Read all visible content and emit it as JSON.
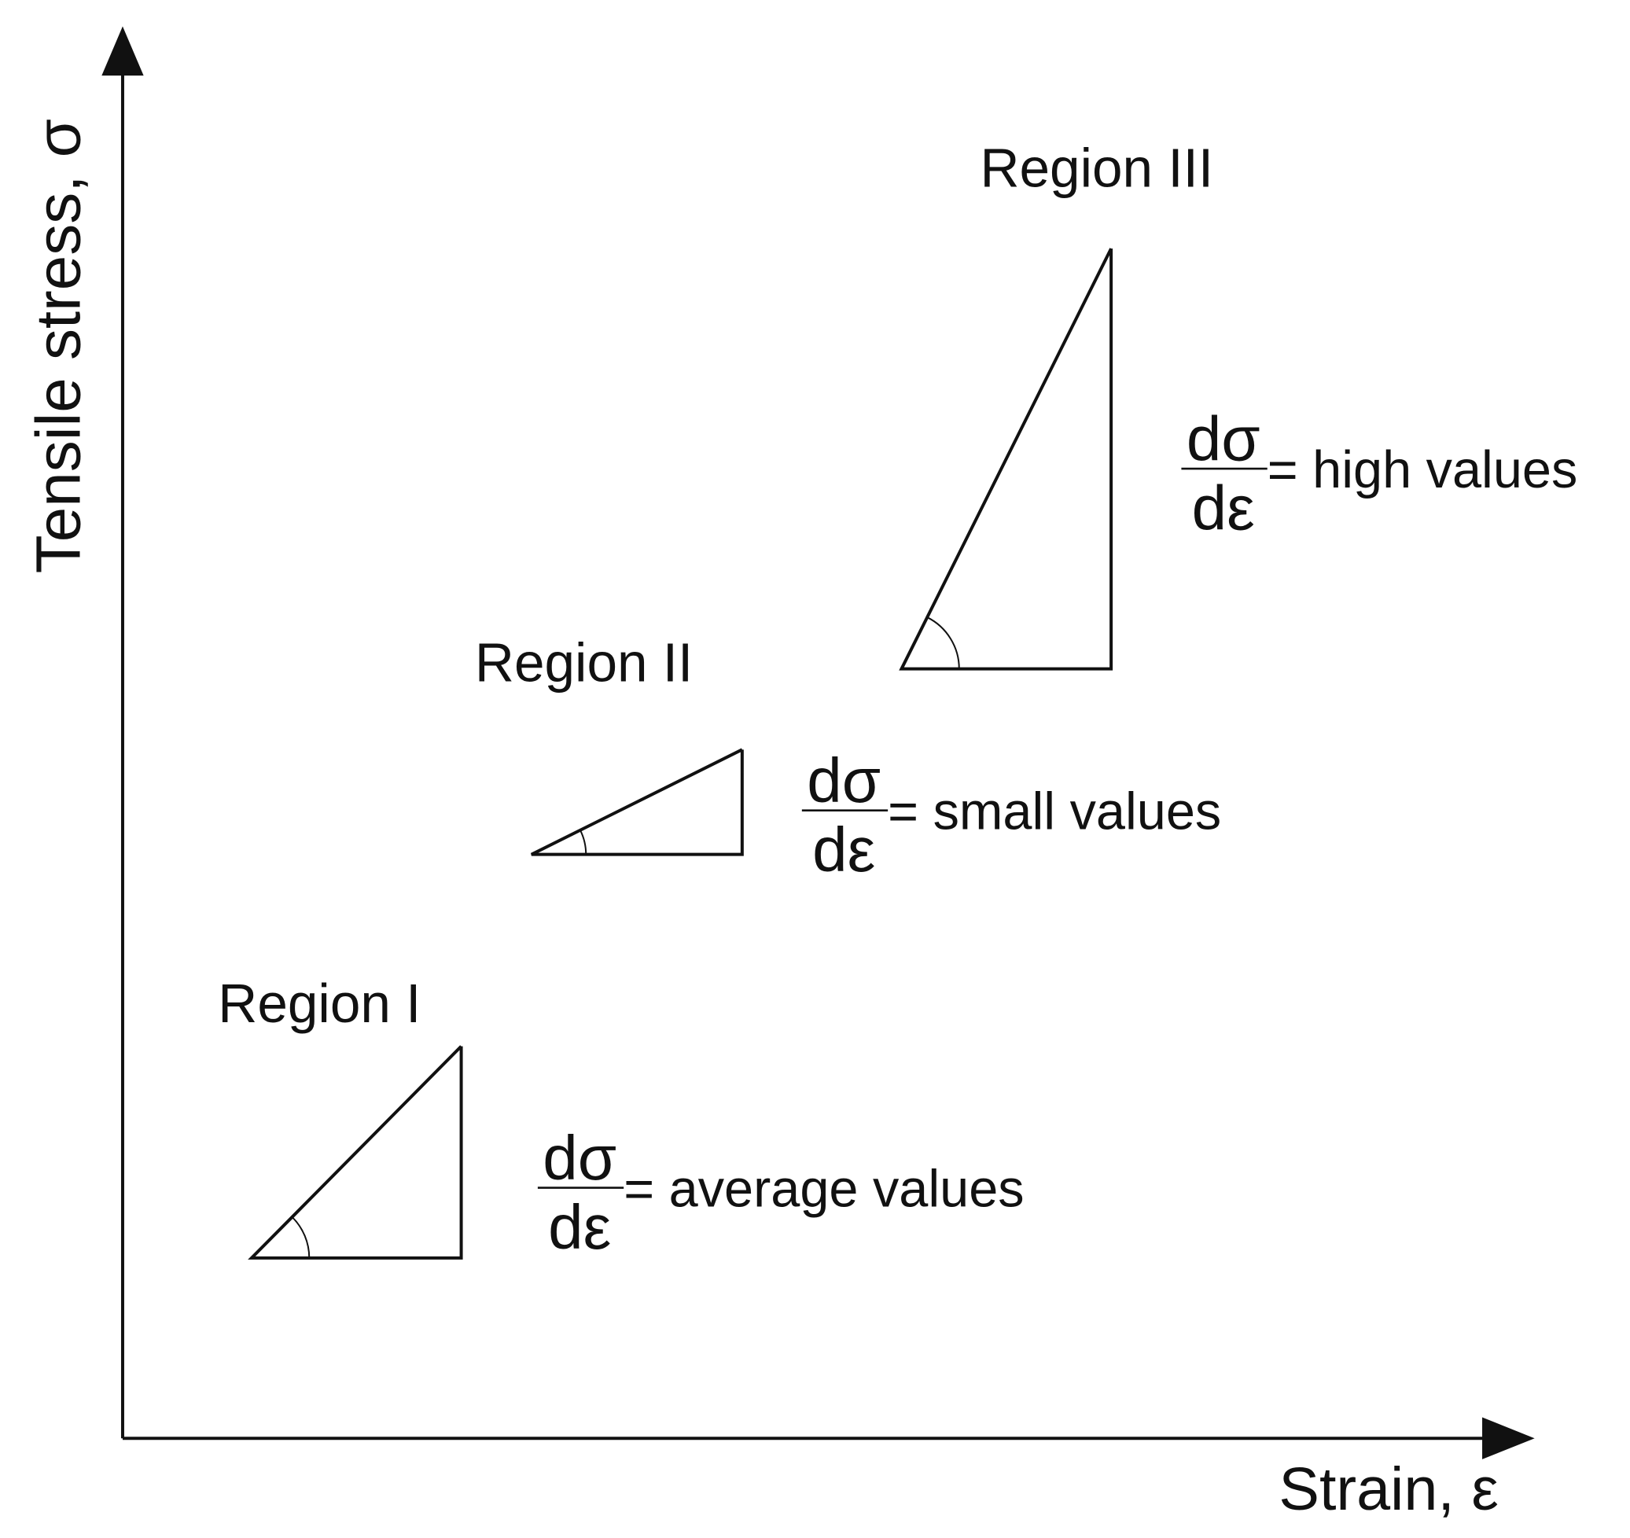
{
  "axes": {
    "x_label": "Strain, ε",
    "y_label": "Tensile stress, σ"
  },
  "regions": [
    {
      "label": "Region I",
      "numerator": "dσ",
      "denominator": "dε",
      "description": "= average values"
    },
    {
      "label": "Region II",
      "numerator": "dσ",
      "denominator": "dε",
      "description": "= small values"
    },
    {
      "label": "Region III",
      "numerator": "dσ",
      "denominator": "dε",
      "description": "= high values"
    }
  ]
}
